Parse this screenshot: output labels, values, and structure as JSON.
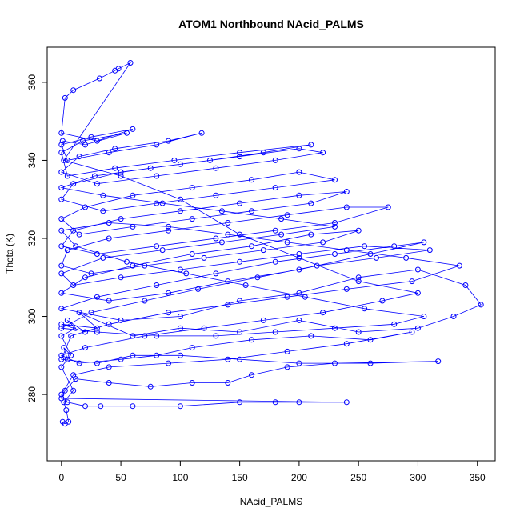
{
  "chart_data": {
    "type": "line",
    "title": "ATOM1 Northbound NAcid_PALMS",
    "xlabel": "NAcid_PALMS",
    "ylabel": "Theta (K)",
    "xlim": [
      -12,
      365
    ],
    "ylim": [
      263,
      369
    ],
    "xticks": [
      0,
      50,
      100,
      150,
      200,
      250,
      300,
      350
    ],
    "yticks": [
      280,
      300,
      320,
      340,
      360
    ],
    "grid": false,
    "legend": "none",
    "marker": "open-circle",
    "color": "#0000ff",
    "series": [
      {
        "points": [
          [
            1,
            273
          ],
          [
            3,
            272.5
          ],
          [
            6,
            273
          ],
          [
            4,
            276
          ],
          [
            2,
            278
          ],
          [
            10,
            281
          ],
          [
            0,
            287
          ],
          [
            5,
            289
          ],
          [
            2,
            292
          ],
          [
            8,
            290
          ],
          [
            0,
            295
          ],
          [
            12,
            297
          ],
          [
            5,
            299
          ],
          [
            20,
            296
          ],
          [
            0,
            298
          ],
          [
            30,
            297
          ],
          [
            15,
            301
          ],
          [
            60,
            295
          ],
          [
            100,
            297
          ],
          [
            150,
            296
          ],
          [
            200,
            299
          ],
          [
            250,
            296
          ],
          [
            300,
            297
          ],
          [
            330,
            300
          ],
          [
            353,
            303
          ],
          [
            340,
            308
          ],
          [
            300,
            312
          ],
          [
            250,
            310
          ],
          [
            200,
            306
          ],
          [
            150,
            304
          ],
          [
            100,
            300
          ],
          [
            50,
            299
          ],
          [
            0,
            302
          ],
          [
            30,
            305
          ],
          [
            80,
            308
          ],
          [
            130,
            311
          ],
          [
            180,
            314
          ],
          [
            230,
            316
          ],
          [
            280,
            318
          ],
          [
            305,
            319
          ],
          [
            260,
            316
          ],
          [
            200,
            312
          ],
          [
            140,
            309
          ],
          [
            90,
            306
          ],
          [
            40,
            304
          ],
          [
            0,
            306
          ],
          [
            20,
            310
          ],
          [
            60,
            313
          ],
          [
            110,
            316
          ],
          [
            160,
            318
          ],
          [
            210,
            321
          ],
          [
            250,
            322
          ],
          [
            220,
            319
          ],
          [
            170,
            317
          ],
          [
            120,
            315
          ],
          [
            70,
            313
          ],
          [
            25,
            311
          ],
          [
            0,
            313
          ],
          [
            5,
            317
          ],
          [
            40,
            320
          ],
          [
            90,
            322
          ],
          [
            140,
            324
          ],
          [
            190,
            326
          ],
          [
            240,
            328
          ],
          [
            275,
            328
          ],
          [
            230,
            324
          ],
          [
            180,
            322
          ],
          [
            130,
            320
          ],
          [
            80,
            318
          ],
          [
            30,
            316
          ],
          [
            0,
            318
          ],
          [
            10,
            322
          ],
          [
            50,
            325
          ],
          [
            100,
            327
          ],
          [
            150,
            329
          ],
          [
            200,
            331
          ],
          [
            240,
            332
          ],
          [
            210,
            329
          ],
          [
            160,
            327
          ],
          [
            110,
            325
          ],
          [
            60,
            323
          ],
          [
            15,
            321
          ],
          [
            0,
            325
          ],
          [
            20,
            328
          ],
          [
            60,
            331
          ],
          [
            110,
            333
          ],
          [
            160,
            335
          ],
          [
            200,
            337
          ],
          [
            230,
            335
          ],
          [
            180,
            333
          ],
          [
            130,
            331
          ],
          [
            80,
            329
          ],
          [
            35,
            327
          ],
          [
            0,
            330
          ],
          [
            10,
            334
          ],
          [
            50,
            337
          ],
          [
            100,
            339
          ],
          [
            150,
            341
          ],
          [
            200,
            343
          ],
          [
            220,
            342
          ],
          [
            180,
            340
          ],
          [
            130,
            338
          ],
          [
            80,
            336
          ],
          [
            30,
            334
          ],
          [
            0,
            337
          ],
          [
            15,
            341
          ],
          [
            45,
            343
          ],
          [
            90,
            345
          ],
          [
            118,
            347
          ],
          [
            80,
            344
          ],
          [
            40,
            342
          ],
          [
            5,
            340
          ],
          [
            0,
            344
          ],
          [
            25,
            346
          ],
          [
            60,
            348
          ],
          [
            30,
            345
          ],
          [
            0,
            347
          ],
          [
            3,
            356
          ],
          [
            10,
            358
          ],
          [
            32,
            361
          ],
          [
            45,
            363
          ],
          [
            48,
            363.5
          ],
          [
            58,
            365
          ],
          [
            2,
            340
          ],
          [
            50,
            336
          ],
          [
            100,
            330
          ],
          [
            150,
            321
          ],
          [
            200,
            315
          ],
          [
            250,
            309
          ],
          [
            300,
            306
          ],
          [
            270,
            304
          ],
          [
            220,
            301
          ],
          [
            170,
            299
          ],
          [
            120,
            297
          ],
          [
            70,
            295
          ],
          [
            20,
            292
          ],
          [
            0,
            290
          ],
          [
            15,
            288
          ],
          [
            50,
            289
          ],
          [
            80,
            290
          ],
          [
            110,
            292
          ],
          [
            160,
            294
          ],
          [
            210,
            295
          ],
          [
            260,
            294
          ],
          [
            295,
            296
          ],
          [
            240,
            293
          ],
          [
            190,
            291
          ],
          [
            140,
            289
          ],
          [
            90,
            288
          ],
          [
            40,
            287
          ],
          [
            10,
            285
          ],
          [
            0,
            280
          ],
          [
            5,
            278
          ],
          [
            20,
            277
          ],
          [
            33,
            277
          ],
          [
            60,
            277
          ],
          [
            100,
            277
          ],
          [
            150,
            278
          ],
          [
            180,
            278
          ],
          [
            200,
            278
          ],
          [
            240,
            278
          ],
          [
            0,
            279
          ],
          [
            3,
            281
          ],
          [
            12,
            284
          ],
          [
            40,
            283
          ],
          [
            75,
            282
          ],
          [
            110,
            283
          ],
          [
            140,
            283
          ],
          [
            160,
            285
          ],
          [
            190,
            287
          ],
          [
            230,
            288
          ],
          [
            317,
            288.5
          ],
          [
            260,
            288
          ],
          [
            200,
            288
          ],
          [
            150,
            289
          ],
          [
            100,
            290
          ],
          [
            60,
            290
          ],
          [
            30,
            288
          ],
          [
            0,
            289
          ],
          [
            8,
            295
          ],
          [
            40,
            298
          ],
          [
            90,
            301
          ],
          [
            140,
            303
          ],
          [
            190,
            305
          ],
          [
            240,
            307
          ],
          [
            295,
            309
          ],
          [
            335,
            313
          ],
          [
            290,
            315
          ],
          [
            240,
            317
          ],
          [
            190,
            319
          ],
          [
            140,
            321
          ],
          [
            90,
            323
          ],
          [
            40,
            324
          ],
          [
            0,
            322
          ],
          [
            12,
            318
          ],
          [
            55,
            314
          ],
          [
            105,
            311
          ],
          [
            155,
            308
          ],
          [
            205,
            305
          ],
          [
            255,
            302
          ],
          [
            305,
            300
          ],
          [
            280,
            298
          ],
          [
            230,
            297
          ],
          [
            180,
            296
          ],
          [
            130,
            295
          ],
          [
            80,
            295
          ],
          [
            30,
            296
          ],
          [
            0,
            297
          ],
          [
            25,
            301
          ],
          [
            70,
            304
          ],
          [
            115,
            307
          ],
          [
            165,
            310
          ],
          [
            215,
            313
          ],
          [
            265,
            315
          ],
          [
            310,
            317
          ],
          [
            255,
            318
          ],
          [
            200,
            316
          ],
          [
            150,
            314
          ],
          [
            100,
            312
          ],
          [
            50,
            310
          ],
          [
            10,
            308
          ],
          [
            0,
            311
          ],
          [
            35,
            315
          ],
          [
            85,
            317
          ],
          [
            135,
            319
          ],
          [
            185,
            321
          ],
          [
            230,
            323
          ],
          [
            185,
            325
          ],
          [
            135,
            327
          ],
          [
            85,
            329
          ],
          [
            35,
            331
          ],
          [
            0,
            333
          ],
          [
            28,
            336
          ],
          [
            75,
            338
          ],
          [
            125,
            340
          ],
          [
            170,
            342
          ],
          [
            210,
            344
          ],
          [
            150,
            342
          ],
          [
            95,
            340
          ],
          [
            45,
            338
          ],
          [
            5,
            336
          ],
          [
            0,
            342
          ],
          [
            18,
            345
          ],
          [
            55,
            347
          ],
          [
            20,
            344
          ],
          [
            1,
            345
          ]
        ]
      }
    ]
  }
}
